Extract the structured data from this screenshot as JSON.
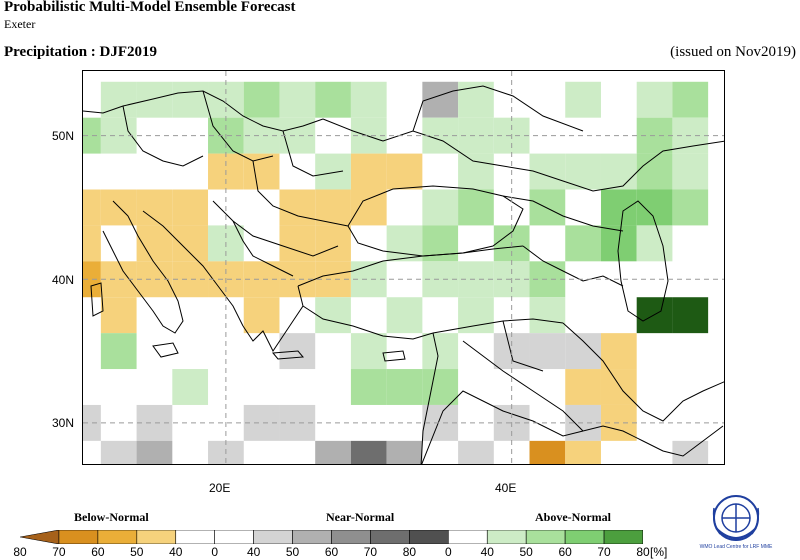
{
  "header": {
    "title": "Probabilistic Multi-Model Ensemble Forecast",
    "centre": "Exeter",
    "variable_season": "Precipitation : DJF2019",
    "issued": "(issued on Nov2019)"
  },
  "map": {
    "lat_labels": [
      "50N",
      "40N",
      "30N"
    ],
    "lon_labels": [
      "20E",
      "40E"
    ],
    "extent": {
      "lon_min": 10,
      "lon_max": 55,
      "lat_min": 27,
      "lat_max": 54.5
    },
    "gridlines": {
      "lon": [
        20,
        40
      ],
      "lat": [
        30,
        40,
        50
      ]
    },
    "cell_size_deg": 2.5
  },
  "legend": {
    "below_label": "Below-Normal",
    "near_label": "Near-Normal",
    "above_label": "Above-Normal",
    "ticks": [
      "80",
      "70",
      "60",
      "50",
      "40",
      "0",
      "40",
      "50",
      "60",
      "70",
      "80",
      "0",
      "40",
      "50",
      "60",
      "70",
      "80"
    ],
    "unit": "[%]",
    "colors": {
      "below": [
        "#a6611a",
        "#d9901f",
        "#eaae38",
        "#f6d27c"
      ],
      "near": [
        "#d4d4d4",
        "#b0b0b0",
        "#8f8f8f",
        "#6e6e6e",
        "#505050"
      ],
      "above": [
        "#cdecc6",
        "#a9e09c",
        "#7fce72",
        "#4c9f3e",
        "#1e5a14"
      ]
    }
  },
  "logo": {
    "text": "WMO Lead Centre for LRF MME",
    "icon": "wmo-emblem-icon"
  }
}
